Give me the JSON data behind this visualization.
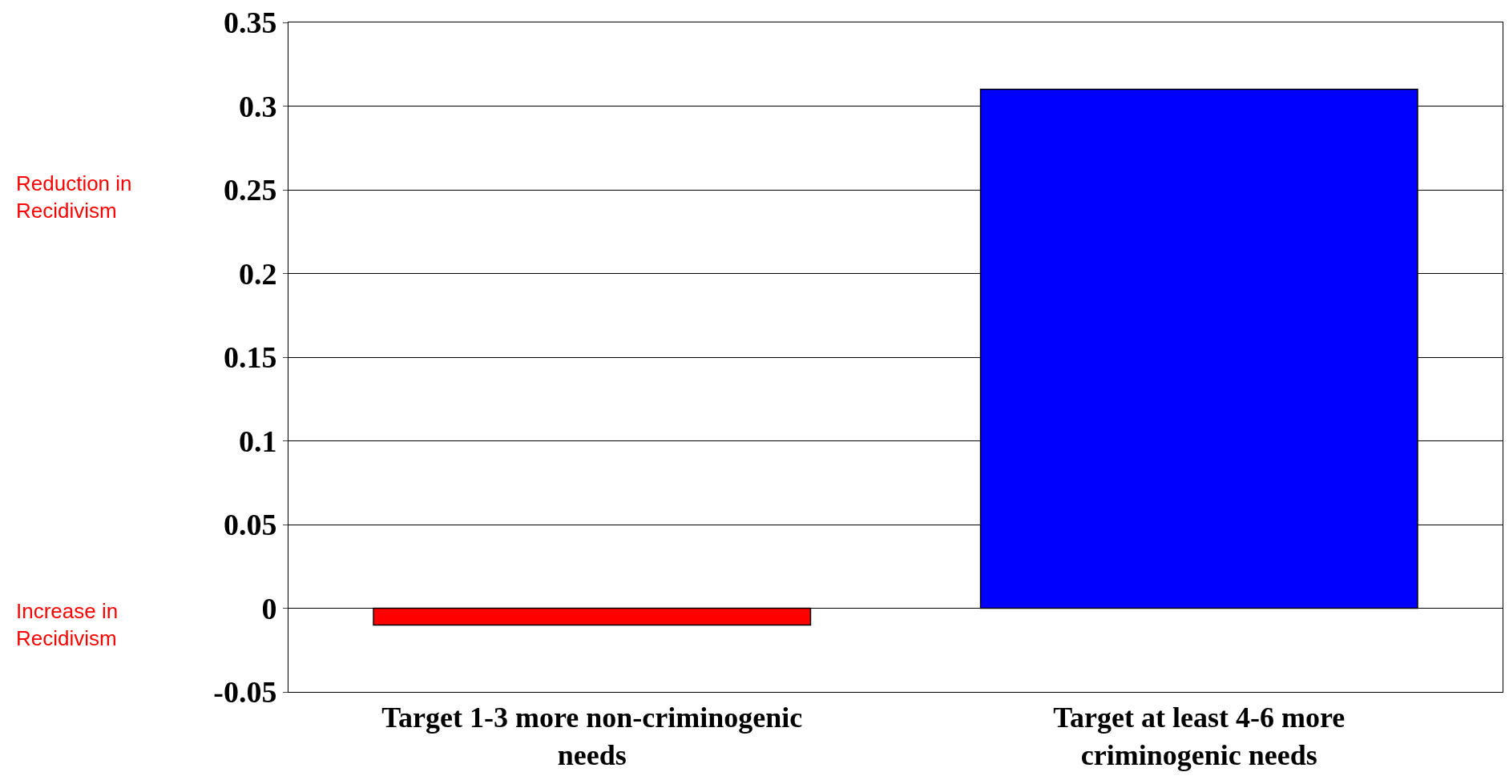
{
  "chart_data": {
    "type": "bar",
    "categories": [
      "Target 1-3 more non-criminogenic needs",
      "Target at least 4-6 more criminogenic needs"
    ],
    "values": [
      -0.01,
      0.31
    ],
    "colors": [
      "#ff0000",
      "#0000ff"
    ],
    "ylim": [
      -0.05,
      0.35
    ],
    "yticks": [
      -0.05,
      0,
      0.05,
      0.1,
      0.15,
      0.2,
      0.25,
      0.3,
      0.35
    ],
    "grid": "y",
    "annotations": [
      "Reduction in Recidivism",
      "Increase in Recidivism"
    ]
  }
}
